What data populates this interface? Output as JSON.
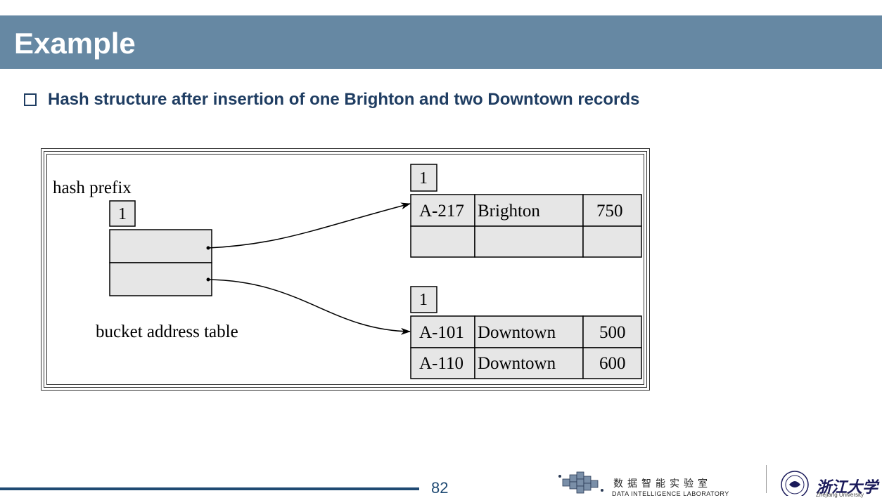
{
  "title": "Example",
  "bullet_text": "Hash structure after  insertion of one Brighton and two Downtown records",
  "diagram": {
    "hash_prefix_label": "hash prefix",
    "hash_prefix_value": "1",
    "bucket_table_label": "bucket address table",
    "bucket1": {
      "local_depth": "1",
      "rows": [
        [
          "A-217",
          "Brighton",
          "750"
        ],
        [
          "",
          "",
          ""
        ]
      ]
    },
    "bucket2": {
      "local_depth": "1",
      "rows": [
        [
          "A-101",
          "Downtown",
          "500"
        ],
        [
          "A-110",
          "Downtown",
          "600"
        ]
      ]
    }
  },
  "footer": {
    "page_number": "82",
    "lab_name_cn": "数据智能实验室",
    "lab_name_en": "DATA INTELLIGENCE LABORATORY",
    "university_name": "浙江大学",
    "university_name_en": "Zhejiang University"
  },
  "colors": {
    "title_bar": "#6688a3",
    "bullet_text": "#1f3d62",
    "cell_fill": "#e6e6e6"
  }
}
